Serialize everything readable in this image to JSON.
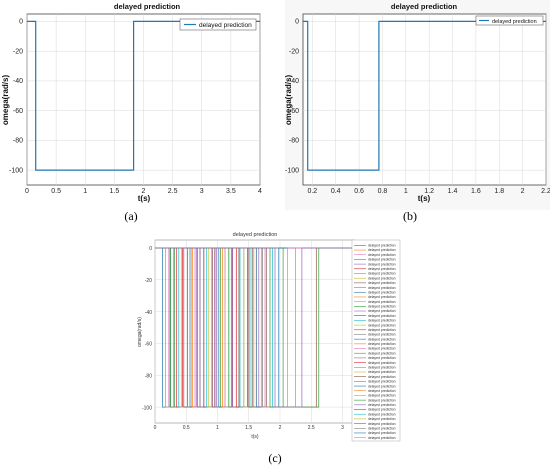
{
  "panels": {
    "a": {
      "caption": "(a)",
      "chart_data": {
        "type": "line",
        "title": "delayed prediction",
        "xlabel": "t(s)",
        "ylabel": "omega(rad/s)",
        "xlim": [
          0,
          4
        ],
        "ylim": [
          -110,
          5
        ],
        "xticks": [
          0,
          0.5,
          1,
          1.5,
          2,
          2.5,
          3,
          3.5,
          4
        ],
        "xtick_labels": [
          "0",
          "0.5",
          "1",
          "1.5",
          "2",
          "2.5",
          "3",
          "3.5",
          "4"
        ],
        "yticks": [
          0,
          -20,
          -40,
          -60,
          -80,
          -100
        ],
        "ytick_labels": [
          "0",
          "-20",
          "-40",
          "-60",
          "-80",
          "-100"
        ],
        "grid": true,
        "legend": "top-right",
        "series": [
          {
            "name": "delayed prediction",
            "color": "#1f77b4",
            "x": [
              0,
              0.15,
              0.15,
              1.83,
              1.83,
              4
            ],
            "y": [
              0,
              0,
              -100,
              -100,
              0,
              0
            ]
          }
        ]
      }
    },
    "b": {
      "caption": "(b)",
      "chart_data": {
        "type": "line",
        "title": "delayed prediction",
        "xlabel": "t(s)",
        "ylabel": "omega(rad/s)",
        "xlim": [
          0.12,
          2.2
        ],
        "ylim": [
          -110,
          5
        ],
        "xticks": [
          0.2,
          0.4,
          0.6,
          0.8,
          1,
          1.2,
          1.4,
          1.6,
          1.8,
          2,
          2.2
        ],
        "xtick_labels": [
          "0.2",
          "0.4",
          "0.6",
          "0.8",
          "1",
          "1.2",
          "1.4",
          "1.6",
          "1.8",
          "2",
          "2.2"
        ],
        "yticks": [
          0,
          -20,
          -40,
          -60,
          -80,
          -100
        ],
        "ytick_labels": [
          "0",
          "-20",
          "-40",
          "-60",
          "-80",
          "-100"
        ],
        "grid": true,
        "legend": "top-right",
        "series": [
          {
            "name": "delayed prediction",
            "color": "#1f77b4",
            "x": [
              0.12,
              0.16,
              0.16,
              0.77,
              0.77,
              2.2
            ],
            "y": [
              0,
              0,
              -100,
              -100,
              0,
              0
            ]
          }
        ]
      }
    },
    "c": {
      "caption": "(c)",
      "chart_data": {
        "type": "line",
        "title": "delayed prediction",
        "xlabel": "t(s)",
        "ylabel": "omega(rad/s)",
        "xlim": [
          0,
          3.2
        ],
        "ylim": [
          -110,
          5
        ],
        "xticks": [
          0,
          0.5,
          1,
          1.5,
          2,
          2.5,
          3
        ],
        "xtick_labels": [
          "0",
          "0.5",
          "1",
          "1.5",
          "2",
          "2.5",
          "3"
        ],
        "yticks": [
          0,
          -20,
          -40,
          -60,
          -80,
          -100
        ],
        "ytick_labels": [
          "0",
          "-20",
          "-40",
          "-60",
          "-80",
          "-100"
        ],
        "grid": true,
        "legend": "right",
        "legend_entry": "delayed prediction",
        "legend_count": 42,
        "series_colors": [
          "#1f77b4",
          "#ff7f0e",
          "#e377c2",
          "#2ca02c",
          "#9467bd",
          "#d62728",
          "#17becf",
          "#bcbd22",
          "#8c564b",
          "#7f7f7f"
        ],
        "pulses": [
          [
            0.12,
            0.24
          ],
          [
            0.17,
            0.52
          ],
          [
            0.22,
            0.95
          ],
          [
            0.25,
            0.31
          ],
          [
            0.3,
            0.66
          ],
          [
            0.34,
            0.44
          ],
          [
            0.38,
            1.18
          ],
          [
            0.42,
            0.58
          ],
          [
            0.46,
            0.72
          ],
          [
            0.52,
            1.34
          ],
          [
            0.56,
            0.78
          ],
          [
            0.6,
            1.62
          ],
          [
            0.64,
            0.9
          ],
          [
            0.68,
            1.05
          ],
          [
            0.72,
            0.98
          ],
          [
            0.78,
            1.24
          ],
          [
            0.82,
            1.52
          ],
          [
            0.86,
            1.12
          ],
          [
            0.92,
            1.78
          ],
          [
            0.96,
            1.42
          ],
          [
            1.02,
            1.22
          ],
          [
            1.08,
            1.58
          ],
          [
            1.12,
            1.35
          ],
          [
            1.18,
            2.05
          ],
          [
            1.24,
            1.66
          ],
          [
            1.3,
            1.48
          ],
          [
            1.36,
            1.88
          ],
          [
            1.42,
            1.55
          ],
          [
            1.5,
            2.58
          ],
          [
            1.56,
            1.72
          ],
          [
            1.62,
            1.98
          ],
          [
            1.7,
            2.25
          ],
          [
            1.76,
            2.12
          ],
          [
            1.84,
            2.62
          ],
          [
            1.92,
            2.35
          ]
        ]
      }
    }
  }
}
